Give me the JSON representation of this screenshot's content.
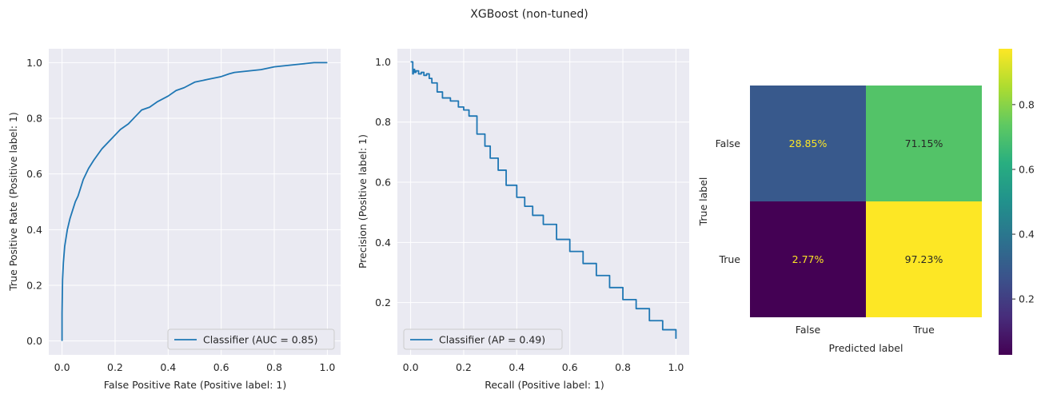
{
  "figure": {
    "title": "XGBoost (non-tuned)"
  },
  "chart_data": [
    {
      "type": "line",
      "name": "roc-curve",
      "xlabel": "False Positive Rate (Positive label: 1)",
      "ylabel": "True Positive Rate (Positive label: 1)",
      "xlim": [
        -0.05,
        1.05
      ],
      "ylim": [
        -0.05,
        1.05
      ],
      "xticks": [
        0.0,
        0.2,
        0.4,
        0.6,
        0.8,
        1.0
      ],
      "yticks": [
        0.0,
        0.2,
        0.4,
        0.6,
        0.8,
        1.0
      ],
      "xtick_labels": [
        "0.0",
        "0.2",
        "0.4",
        "0.6",
        "0.8",
        "1.0"
      ],
      "ytick_labels": [
        "0.0",
        "0.2",
        "0.4",
        "0.6",
        "0.8",
        "1.0"
      ],
      "grid": true,
      "legend": {
        "position": "lower-right",
        "label": "Classifier (AUC = 0.85)"
      },
      "color": "#1f77b4",
      "series": [
        {
          "name": "Classifier (AUC = 0.85)",
          "x": [
            0.0,
            0.0,
            0.002,
            0.005,
            0.01,
            0.015,
            0.02,
            0.03,
            0.04,
            0.05,
            0.06,
            0.07,
            0.08,
            0.1,
            0.12,
            0.15,
            0.18,
            0.2,
            0.22,
            0.25,
            0.28,
            0.3,
            0.33,
            0.36,
            0.4,
            0.43,
            0.46,
            0.5,
            0.55,
            0.6,
            0.63,
            0.65,
            0.7,
            0.75,
            0.8,
            0.85,
            0.9,
            0.95,
            1.0
          ],
          "y": [
            0.0,
            0.1,
            0.22,
            0.28,
            0.34,
            0.37,
            0.4,
            0.44,
            0.47,
            0.5,
            0.52,
            0.55,
            0.58,
            0.62,
            0.65,
            0.69,
            0.72,
            0.74,
            0.76,
            0.78,
            0.81,
            0.83,
            0.84,
            0.86,
            0.88,
            0.9,
            0.91,
            0.93,
            0.94,
            0.95,
            0.96,
            0.965,
            0.97,
            0.975,
            0.985,
            0.99,
            0.995,
            1.0,
            1.0
          ]
        }
      ]
    },
    {
      "type": "line",
      "name": "precision-recall-curve",
      "xlabel": "Recall (Positive label: 1)",
      "ylabel": "Precision (Positive label: 1)",
      "xlim": [
        -0.05,
        1.05
      ],
      "ylim": [
        0.0265,
        1.0435
      ],
      "xticks": [
        0.0,
        0.2,
        0.4,
        0.6,
        0.8,
        1.0
      ],
      "yticks": [
        0.2,
        0.4,
        0.6,
        0.8,
        1.0
      ],
      "xtick_labels": [
        "0.0",
        "0.2",
        "0.4",
        "0.6",
        "0.8",
        "1.0"
      ],
      "ytick_labels": [
        "0.2",
        "0.4",
        "0.6",
        "0.8",
        "1.0"
      ],
      "grid": true,
      "legend": {
        "position": "lower-left",
        "label": "Classifier (AP = 0.49)"
      },
      "color": "#1f77b4",
      "series": [
        {
          "name": "Classifier (AP = 0.49)",
          "x": [
            0.0,
            0.005,
            0.008,
            0.01,
            0.012,
            0.015,
            0.02,
            0.03,
            0.04,
            0.05,
            0.06,
            0.07,
            0.08,
            0.1,
            0.12,
            0.15,
            0.18,
            0.2,
            0.22,
            0.25,
            0.28,
            0.3,
            0.33,
            0.36,
            0.4,
            0.43,
            0.46,
            0.5,
            0.55,
            0.6,
            0.65,
            0.7,
            0.75,
            0.8,
            0.85,
            0.9,
            0.95,
            1.0
          ],
          "y": [
            1.0,
            1.0,
            0.96,
            0.97,
            0.975,
            0.965,
            0.97,
            0.96,
            0.965,
            0.955,
            0.96,
            0.945,
            0.93,
            0.9,
            0.88,
            0.87,
            0.85,
            0.84,
            0.82,
            0.76,
            0.72,
            0.68,
            0.64,
            0.59,
            0.55,
            0.52,
            0.49,
            0.46,
            0.41,
            0.37,
            0.33,
            0.29,
            0.25,
            0.21,
            0.18,
            0.14,
            0.11,
            0.08
          ]
        }
      ]
    },
    {
      "type": "heatmap",
      "name": "confusion-matrix",
      "xlabel": "Predicted label",
      "ylabel": "True label",
      "x_categories": [
        "False",
        "True"
      ],
      "y_categories": [
        "False",
        "True"
      ],
      "values": [
        [
          0.2885,
          0.7115
        ],
        [
          0.0277,
          0.9723
        ]
      ],
      "cell_labels": [
        [
          "28.85%",
          "71.15%"
        ],
        [
          "2.77%",
          "97.23%"
        ]
      ],
      "colormap": "viridis",
      "colorbar": {
        "min": 0.0277,
        "max": 0.9723,
        "ticks": [
          0.2,
          0.4,
          0.6,
          0.8
        ],
        "tick_labels": [
          "0.2",
          "0.4",
          "0.6",
          "0.8"
        ]
      }
    }
  ]
}
